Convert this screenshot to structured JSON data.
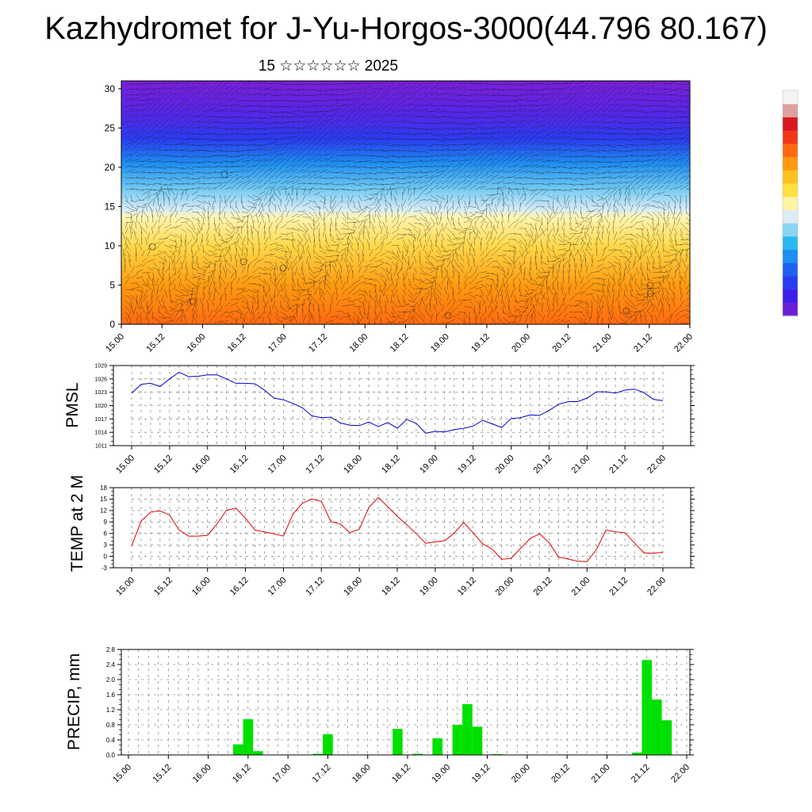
{
  "header": {
    "title": "Kazhydromet for J-Yu-Horgos-3000(44.796 80.167)",
    "subtitle": "15 ☆☆☆☆☆☆ 2025"
  },
  "colors": {
    "pressure_line": "#0000cc",
    "temp_line": "#dd0000",
    "precip_bar": "#00e000",
    "colorbar": [
      "#6a1fd6",
      "#3d20e8",
      "#2a3cf0",
      "#2060f0",
      "#1e8ef0",
      "#2ab8f0",
      "#8ad6f2",
      "#dcecf5",
      "#fff4a0",
      "#ffe040",
      "#ffc020",
      "#ff9a10",
      "#ff6a10",
      "#f03818",
      "#d81820",
      "#e0a0a0",
      "#f4f4f4"
    ]
  },
  "chart_data": [
    {
      "type": "heatmap",
      "title": "",
      "description_kind": "time-height cross-section with wind barbs",
      "xlabel": "",
      "ylabel": "",
      "x_tick_labels": [
        "15.00",
        "15.12",
        "16.00",
        "16.12",
        "17.00",
        "17.12",
        "18.00",
        "18.12",
        "19.00",
        "19.12",
        "20.00",
        "20.12",
        "21.00",
        "21.12",
        "22.00"
      ],
      "y_ticks": [
        0,
        5,
        10,
        15,
        20,
        25,
        30
      ],
      "ylim": [
        0,
        31
      ],
      "colorbar_labels": []
    },
    {
      "type": "line",
      "ylabel": "PMSL",
      "x_tick_labels": [
        "15.00",
        "15.12",
        "16.00",
        "16.12",
        "17.00",
        "17.12",
        "18.00",
        "18.12",
        "19.00",
        "19.12",
        "20.00",
        "20.12",
        "21.00",
        "21.12",
        "22.00"
      ],
      "y_ticks": [
        1011,
        1014,
        1017,
        1020,
        1023,
        1026,
        1029
      ],
      "ylim": [
        1011,
        1029
      ],
      "x_hours": [
        0,
        3,
        6,
        9,
        12,
        15,
        18,
        21,
        24,
        27,
        30,
        33,
        36,
        39,
        42,
        45,
        48,
        51,
        54,
        57,
        60,
        63,
        66,
        69,
        72,
        75,
        78,
        81,
        84,
        87,
        90,
        93,
        96,
        99,
        102,
        105,
        108,
        111,
        114,
        117,
        120,
        123,
        126,
        129,
        132,
        135,
        138,
        141,
        144,
        147,
        150,
        153,
        156,
        159,
        162,
        165,
        168
      ],
      "series": [
        {
          "values": [
            1022.8,
            1024.8,
            1025,
            1024.3,
            1026,
            1027.5,
            1026.5,
            1026.6,
            1026.9,
            1026.9,
            1026,
            1025,
            1025,
            1024.9,
            1023.5,
            1021.7,
            1021.3,
            1020.5,
            1019.5,
            1017.7,
            1017.3,
            1017.4,
            1016.1,
            1015.6,
            1015.5,
            1016.3,
            1015.3,
            1016.2,
            1014.9,
            1016.9,
            1016,
            1013.8,
            1014.2,
            1014.1,
            1014.6,
            1014.9,
            1015.4,
            1016.7,
            1015.9,
            1015.1,
            1017.1,
            1017.3,
            1017.9,
            1017.8,
            1018.9,
            1020.3,
            1020.9,
            1020.9,
            1021.7,
            1023.1,
            1023.1,
            1022.8,
            1023.5,
            1023.7,
            1022.9,
            1021.4,
            1021.1
          ]
        }
      ]
    },
    {
      "type": "line",
      "ylabel": "TEMP at 2 M",
      "x_tick_labels": [
        "15.00",
        "15.12",
        "16.00",
        "16.12",
        "17.00",
        "17.12",
        "18.00",
        "18.12",
        "19.00",
        "19.12",
        "20.00",
        "20.12",
        "21.00",
        "21.12",
        "22.00"
      ],
      "y_ticks": [
        -3,
        0,
        3,
        6,
        9,
        12,
        15,
        18
      ],
      "ylim": [
        -3,
        18
      ],
      "x_hours": [
        0,
        3,
        6,
        9,
        12,
        15,
        18,
        21,
        24,
        27,
        30,
        33,
        36,
        39,
        42,
        45,
        48,
        51,
        54,
        57,
        60,
        63,
        66,
        69,
        72,
        75,
        78,
        81,
        84,
        87,
        90,
        93,
        96,
        99,
        102,
        105,
        108,
        111,
        114,
        117,
        120,
        123,
        126,
        129,
        132,
        135,
        138,
        141,
        144,
        147,
        150,
        153,
        156,
        159,
        162,
        165,
        168
      ],
      "series": [
        {
          "values": [
            2.8,
            9.2,
            11.6,
            11.9,
            10.8,
            6.9,
            5.3,
            5.3,
            5.5,
            8.5,
            12.1,
            12.6,
            10,
            6.9,
            6.4,
            5.9,
            5.3,
            11.1,
            13.9,
            15,
            14.4,
            9.1,
            8.5,
            6.2,
            7.1,
            12.8,
            15.4,
            13,
            10.5,
            8.3,
            5.9,
            3.4,
            3.8,
            4.1,
            6.1,
            8.9,
            6.1,
            3.3,
            1.9,
            -0.8,
            -0.5,
            2.1,
            4.7,
            5.9,
            3.6,
            -0.2,
            -0.7,
            -1.3,
            -1.4,
            1.8,
            6.9,
            6.4,
            6.2,
            3.5,
            0.9,
            0.8,
            1.1
          ]
        }
      ]
    },
    {
      "type": "bar",
      "ylabel": "PRECIP, mm",
      "x_tick_labels": [
        "15.00",
        "15.12",
        "16.00",
        "16.12",
        "17.00",
        "17.12",
        "18.00",
        "18.12",
        "19.00",
        "19.12",
        "20.00",
        "20.12",
        "21.00",
        "21.12",
        "22.00"
      ],
      "y_ticks": [
        "0.0",
        "0.4",
        "0.8",
        "1.2",
        "1.6",
        "2.0",
        "2.4",
        "2.8"
      ],
      "ylim": [
        0,
        2.8
      ],
      "bar_width_hours": 3,
      "bars": [
        {
          "hour": 33,
          "value": 0.28
        },
        {
          "hour": 36,
          "value": 0.95
        },
        {
          "hour": 39,
          "value": 0.1
        },
        {
          "hour": 57,
          "value": 0.03
        },
        {
          "hour": 60,
          "value": 0.55
        },
        {
          "hour": 81,
          "value": 0.69
        },
        {
          "hour": 87,
          "value": 0.03
        },
        {
          "hour": 93,
          "value": 0.44
        },
        {
          "hour": 99,
          "value": 0.8
        },
        {
          "hour": 102,
          "value": 1.35
        },
        {
          "hour": 105,
          "value": 0.75
        },
        {
          "hour": 111,
          "value": 0.02
        },
        {
          "hour": 153,
          "value": 0.06
        },
        {
          "hour": 156,
          "value": 2.52
        },
        {
          "hour": 159,
          "value": 1.47
        },
        {
          "hour": 162,
          "value": 0.92
        }
      ]
    }
  ]
}
